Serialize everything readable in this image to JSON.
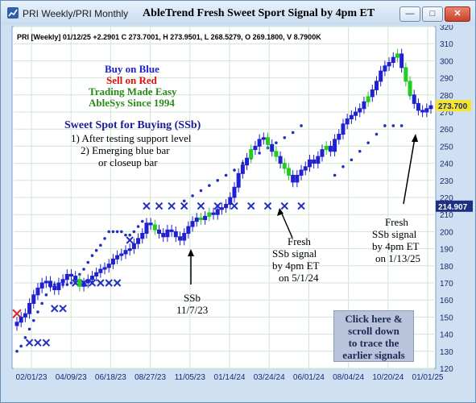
{
  "window": {
    "title": "PRI Weekly/PRI Monthly",
    "heading": "AbleTrend Fresh Sweet Sport Signal by 4pm ET",
    "buttons": {
      "minimize": "—",
      "maximize": "□",
      "close": "✕"
    }
  },
  "header_text": "PRI [Weekly] 01/12/25 +2.2901 C 273.7001, H 273.9501, L 268.5279, O 269.1800, V 8.7900K",
  "legend": {
    "buy": "Buy on Blue",
    "sell": "Sell on Red",
    "easy": "Trading Made Easy",
    "since": "AbleSys Since 1994"
  },
  "sweet_spot": {
    "title": "Sweet Spot for Buying (SSb)",
    "line1": "1) After testing support level",
    "line2": "2) Emerging blue bar",
    "line3": "or closeup bar"
  },
  "annotations": {
    "ssb_nov": [
      "SSb",
      "11/7/23"
    ],
    "fresh_may": [
      "Fresh",
      "SSb signal",
      "by 4pm ET",
      "on 5/1/24"
    ],
    "fresh_jan": [
      "Fresh",
      "SSb signal",
      "by 4pm ET",
      "on 1/13/25"
    ]
  },
  "click_box": [
    "Click here &",
    "scroll down",
    "to trace the",
    "earlier signals"
  ],
  "colors": {
    "up_bar": "#2020d0",
    "down_bar": "#22cc22",
    "sell_marker": "#e02020",
    "stop_x": "#2030c0",
    "stop_dot": "#2030c0",
    "background": "#ffffff",
    "grid": "#cfe6d0",
    "price_box_current": "#f5e52a",
    "price_box_level": "#1c2f80"
  },
  "chart_data": {
    "type": "candlestick",
    "x_ticks": [
      "02/01/23",
      "04/09/23",
      "06/18/23",
      "08/27/23",
      "11/05/23",
      "01/14/24",
      "03/24/24",
      "06/01/24",
      "08/04/24",
      "10/20/24",
      "01/01/25"
    ],
    "ylim": [
      120,
      320
    ],
    "y_ticks": [
      120,
      130,
      140,
      150,
      160,
      170,
      180,
      190,
      200,
      210,
      220,
      230,
      240,
      250,
      260,
      270,
      280,
      290,
      300,
      310,
      320
    ],
    "current_price_label": "273.700",
    "level_label": "214.907",
    "current_price": 273.7,
    "level": 214.907,
    "grid": true,
    "weekly_close": [
      147,
      150,
      152,
      158,
      163,
      167,
      170,
      171,
      168,
      166,
      170,
      172,
      175,
      174,
      172,
      168,
      170,
      172,
      174,
      176,
      178,
      179,
      181,
      184,
      186,
      187,
      189,
      190,
      193,
      196,
      199,
      205,
      204,
      201,
      199,
      197,
      201,
      200,
      197,
      195,
      199,
      203,
      206,
      208,
      207,
      209,
      211,
      210,
      213,
      214,
      216,
      220,
      226,
      234,
      239,
      243,
      248,
      250,
      254,
      255,
      251,
      247,
      244,
      240,
      237,
      233,
      229,
      233,
      236,
      238,
      242,
      240,
      244,
      248,
      250,
      247,
      254,
      257,
      263,
      266,
      268,
      270,
      272,
      276,
      279,
      283,
      288,
      294,
      297,
      299,
      302,
      304,
      296,
      288,
      280,
      275,
      271,
      270,
      272,
      273.7
    ],
    "down_weeks": [
      15,
      33,
      44,
      46,
      56,
      60,
      62,
      64,
      65,
      74,
      84,
      91,
      93,
      94
    ],
    "sell_signal": {
      "week": 0,
      "price": 152
    },
    "stop_x": [
      {
        "week": 3,
        "price": 135
      },
      {
        "week": 5,
        "price": 135
      },
      {
        "week": 7,
        "price": 135
      },
      {
        "week": 9,
        "price": 155
      },
      {
        "week": 11,
        "price": 155
      },
      {
        "week": 14,
        "price": 170
      },
      {
        "week": 16,
        "price": 170
      },
      {
        "week": 18,
        "price": 170
      },
      {
        "week": 20,
        "price": 170
      },
      {
        "week": 22,
        "price": 170
      },
      {
        "week": 24,
        "price": 170
      },
      {
        "week": 27,
        "price": 195
      },
      {
        "week": 31,
        "price": 215
      },
      {
        "week": 34,
        "price": 215
      },
      {
        "week": 37,
        "price": 215
      },
      {
        "week": 40,
        "price": 215
      },
      {
        "week": 44,
        "price": 215
      },
      {
        "week": 48,
        "price": 215
      },
      {
        "week": 52,
        "price": 215
      },
      {
        "week": 56,
        "price": 215
      },
      {
        "week": 60,
        "price": 215
      },
      {
        "week": 64,
        "price": 215
      },
      {
        "week": 68,
        "price": 215
      }
    ],
    "stop_dots": [
      {
        "week": 0,
        "price": 130
      },
      {
        "week": 1,
        "price": 133
      },
      {
        "week": 2,
        "price": 138
      },
      {
        "week": 3,
        "price": 143
      },
      {
        "week": 4,
        "price": 148
      },
      {
        "week": 5,
        "price": 153
      },
      {
        "week": 6,
        "price": 158
      },
      {
        "week": 7,
        "price": 163
      },
      {
        "week": 8,
        "price": 168
      },
      {
        "week": 9,
        "price": 169
      },
      {
        "week": 10,
        "price": 169
      },
      {
        "week": 11,
        "price": 169
      },
      {
        "week": 12,
        "price": 169
      },
      {
        "week": 13,
        "price": 170
      },
      {
        "week": 14,
        "price": 172
      },
      {
        "week": 15,
        "price": 175
      },
      {
        "week": 16,
        "price": 178
      },
      {
        "week": 17,
        "price": 182
      },
      {
        "week": 18,
        "price": 186
      },
      {
        "week": 19,
        "price": 189
      },
      {
        "week": 20,
        "price": 192
      },
      {
        "week": 21,
        "price": 196
      },
      {
        "week": 22,
        "price": 200
      },
      {
        "week": 23,
        "price": 200
      },
      {
        "week": 24,
        "price": 200
      },
      {
        "week": 25,
        "price": 200
      },
      {
        "week": 26,
        "price": 198
      },
      {
        "week": 27,
        "price": 198
      },
      {
        "week": 28,
        "price": 200
      },
      {
        "week": 29,
        "price": 203
      },
      {
        "week": 30,
        "price": 206
      },
      {
        "week": 40,
        "price": 218
      },
      {
        "week": 42,
        "price": 221
      },
      {
        "week": 44,
        "price": 224
      },
      {
        "week": 46,
        "price": 227
      },
      {
        "week": 48,
        "price": 230
      },
      {
        "week": 50,
        "price": 233
      },
      {
        "week": 52,
        "price": 236
      },
      {
        "week": 54,
        "price": 240
      },
      {
        "week": 56,
        "price": 243
      },
      {
        "week": 58,
        "price": 246
      },
      {
        "week": 60,
        "price": 249
      },
      {
        "week": 62,
        "price": 252
      },
      {
        "week": 64,
        "price": 255
      },
      {
        "week": 66,
        "price": 258
      },
      {
        "week": 68,
        "price": 262
      },
      {
        "week": 76,
        "price": 233
      },
      {
        "week": 78,
        "price": 238
      },
      {
        "week": 80,
        "price": 242
      },
      {
        "week": 82,
        "price": 247
      },
      {
        "week": 84,
        "price": 252
      },
      {
        "week": 86,
        "price": 257
      },
      {
        "week": 88,
        "price": 262
      },
      {
        "week": 90,
        "price": 262
      },
      {
        "week": 92,
        "price": 262
      },
      {
        "week": 94,
        "price": 280
      }
    ]
  }
}
